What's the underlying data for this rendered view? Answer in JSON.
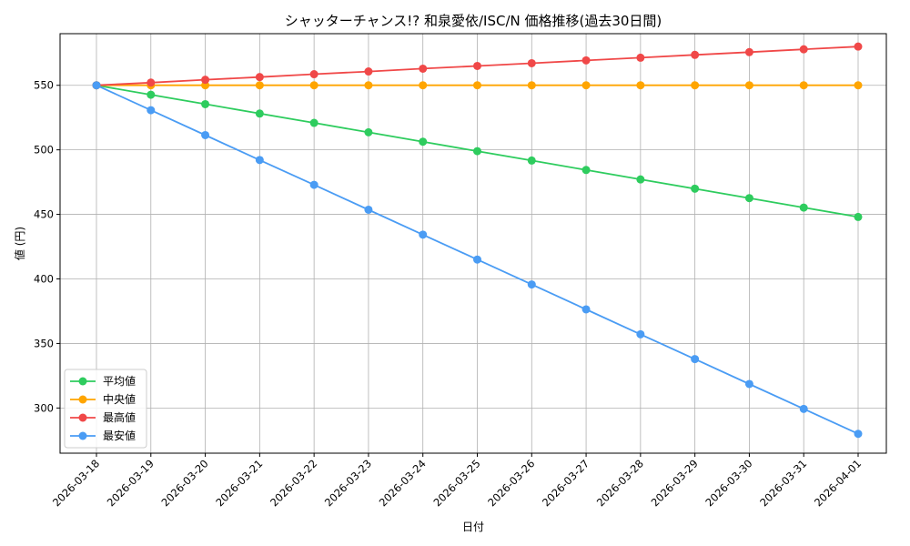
{
  "chart_data": {
    "type": "line",
    "title": "シャッターチャンス!? 和泉愛依/ISC/N 価格推移(過去30日間)",
    "xlabel": "日付",
    "ylabel": "値 (円)",
    "categories": [
      "2026-03-18",
      "2026-03-19",
      "2026-03-20",
      "2026-03-21",
      "2026-03-22",
      "2026-03-23",
      "2026-03-24",
      "2026-03-25",
      "2026-03-26",
      "2026-03-27",
      "2026-03-28",
      "2026-03-29",
      "2026-03-30",
      "2026-03-31",
      "2026-04-01"
    ],
    "ylim": [
      265,
      590
    ],
    "yticks": [
      300,
      350,
      400,
      450,
      500,
      550
    ],
    "grid": true,
    "legend_position": "lower-left",
    "series": [
      {
        "name": "平均値",
        "color": "#2ecc5e",
        "values": [
          550,
          542.7,
          535.4,
          528.1,
          520.9,
          513.6,
          506.3,
          499.0,
          491.7,
          484.4,
          477.1,
          469.9,
          462.6,
          455.3,
          448
        ]
      },
      {
        "name": "中央値",
        "color": "#ffa500",
        "values": [
          550,
          550,
          550,
          550,
          550,
          550,
          550,
          550,
          550,
          550,
          550,
          550,
          550,
          550,
          550
        ]
      },
      {
        "name": "最高値",
        "color": "#f04848",
        "values": [
          550,
          552.1,
          554.3,
          556.4,
          558.6,
          560.7,
          562.9,
          565.0,
          567.1,
          569.3,
          571.4,
          573.6,
          575.7,
          577.9,
          580
        ]
      },
      {
        "name": "最安値",
        "color": "#4a9cf4",
        "values": [
          550,
          530.7,
          511.4,
          492.1,
          472.9,
          453.6,
          434.3,
          415.0,
          395.7,
          376.4,
          357.1,
          337.9,
          318.6,
          299.3,
          280
        ]
      }
    ]
  }
}
